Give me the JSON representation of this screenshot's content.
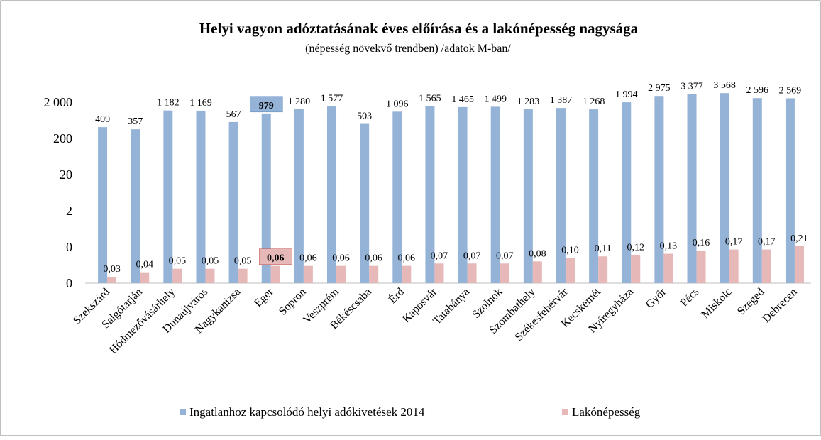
{
  "chart_data": {
    "type": "bar",
    "title": "Helyi vagyon adóztatásának éves előírása és a lakónépesség nagysága",
    "subtitle": "(népesség növekvő trendben)  /adatok M-ban/",
    "categories": [
      "Szekszárd",
      "Salgótarján",
      "Hódmezővásárhely",
      "Dunaújváros",
      "Nagykanizsa",
      "Eger",
      "Sopron",
      "Veszprém",
      "Békéscsaba",
      "Érd",
      "Kaposvár",
      "Tatabánya",
      "Szolnok",
      "Szombathely",
      "Székesfehérvár",
      "Kecskemét",
      "Nyíregyháza",
      "Győr",
      "Pécs",
      "Miskolc",
      "Szeged",
      "Debrecen"
    ],
    "series": [
      {
        "name": "Ingatlanhoz kapcsolódó helyi adókivetések 2014",
        "color": "#95b3d7",
        "values": [
          409,
          357,
          1182,
          1169,
          567,
          979,
          1280,
          1577,
          503,
          1096,
          1565,
          1465,
          1499,
          1283,
          1387,
          1268,
          1994,
          2975,
          3377,
          3568,
          2596,
          2569
        ],
        "value_labels": [
          "409",
          "357",
          "1 182",
          "1 169",
          "567",
          "979",
          "1 280",
          "1 577",
          "503",
          "1 096",
          "1 565",
          "1 465",
          "1 499",
          "1 283",
          "1 387",
          "1 268",
          "1 994",
          "2 975",
          "3 377",
          "3 568",
          "2 596",
          "2 569"
        ]
      },
      {
        "name": "Lakónépesség",
        "color": "#e6b9b8",
        "values": [
          0.03,
          0.04,
          0.05,
          0.05,
          0.05,
          0.06,
          0.06,
          0.06,
          0.06,
          0.06,
          0.07,
          0.07,
          0.07,
          0.08,
          0.1,
          0.11,
          0.12,
          0.13,
          0.16,
          0.17,
          0.17,
          0.21
        ],
        "value_labels": [
          "0,03",
          "0,04",
          "0,05",
          "0,05",
          "0,05",
          "0,06",
          "0,06",
          "0,06",
          "0,06",
          "0,06",
          "0,07",
          "0,07",
          "0,07",
          "0,08",
          "0,10",
          "0,11",
          "0,12",
          "0,13",
          "0,16",
          "0,17",
          "0,17",
          "0,21"
        ]
      }
    ],
    "log_scale": true,
    "ylim": [
      0.02,
      10000
    ],
    "yticks": [
      {
        "value": 0.02,
        "label": "0"
      },
      {
        "value": 0.2,
        "label": "0"
      },
      2,
      20,
      200,
      {
        "value": 2000,
        "label": "2 000"
      }
    ],
    "highlight_category": "Eger",
    "legend": "bottom"
  }
}
